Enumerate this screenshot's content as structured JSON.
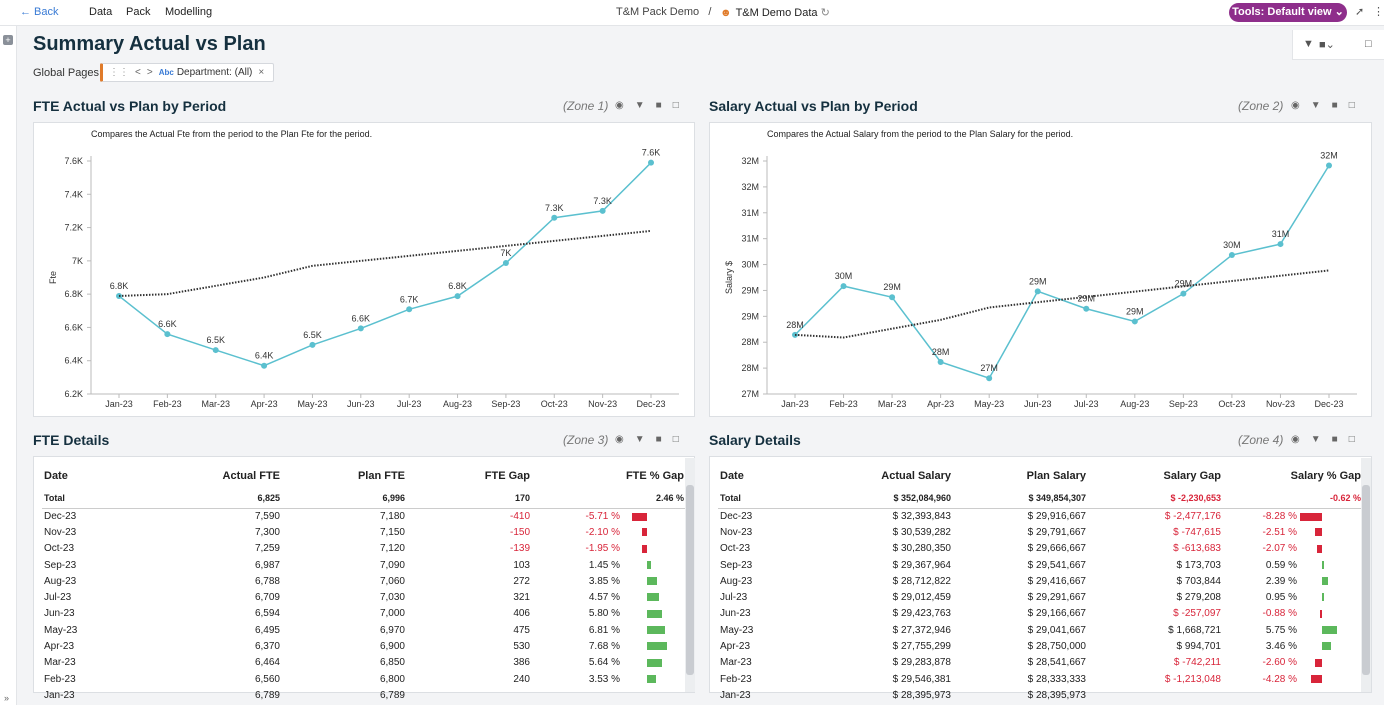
{
  "topbar": {
    "back": "← Back",
    "menus": [
      "Data",
      "Pack",
      "Modelling"
    ],
    "crumb_pack": "T&M Pack Demo",
    "separator": "/",
    "crumb_data": "T&M Demo Data",
    "tools": "Tools: Default view ⌄"
  },
  "page": {
    "title": "Summary Actual vs Plan",
    "global_pages": "Global Pages",
    "filter": "Department: (All)"
  },
  "zones": {
    "z1": {
      "title": "FTE Actual vs Plan by Period",
      "zone": "(Zone 1)",
      "desc": "Compares the Actual Fte from the period to the Plan Fte for the period."
    },
    "z2": {
      "title": "Salary Actual vs Plan by Period",
      "zone": "(Zone 2)",
      "desc": "Compares the Actual Salary from the period to the Plan Salary for the period."
    },
    "z3": {
      "title": "FTE Details",
      "zone": "(Zone 3)"
    },
    "z4": {
      "title": "Salary Details",
      "zone": "(Zone 4)"
    }
  },
  "chart_data": [
    {
      "type": "line",
      "ylabel": "Fte",
      "categories": [
        "Jan-23",
        "Feb-23",
        "Mar-23",
        "Apr-23",
        "May-23",
        "Jun-23",
        "Jul-23",
        "Aug-23",
        "Sep-23",
        "Oct-23",
        "Nov-23",
        "Dec-23"
      ],
      "yticks": [
        "6.2K",
        "6.4K",
        "6.6K",
        "6.8K",
        "7K",
        "7.2K",
        "7.4K",
        "7.6K"
      ],
      "ylim": [
        6200,
        7600
      ],
      "series": [
        {
          "values": [
            6789,
            6560,
            6464,
            6370,
            6495,
            6594,
            6709,
            6788,
            6987,
            7259,
            7300,
            7590
          ],
          "labels": [
            "6.8K",
            "6.6K",
            "6.5K",
            "6.4K",
            "6.5K",
            "6.6K",
            "6.7K",
            "6.8K",
            "7K",
            "7.3K",
            "7.3K",
            "7.6K"
          ],
          "color": "#5bc0cf"
        },
        {
          "values": [
            6789,
            6800,
            6850,
            6900,
            6970,
            7000,
            7030,
            7060,
            7090,
            7120,
            7150,
            7180
          ],
          "color": "#333333",
          "dotted": true
        }
      ]
    },
    {
      "type": "line",
      "ylabel": "Salary $",
      "categories": [
        "Jan-23",
        "Feb-23",
        "Mar-23",
        "Apr-23",
        "May-23",
        "Jun-23",
        "Jul-23",
        "Aug-23",
        "Sep-23",
        "Oct-23",
        "Nov-23",
        "Dec-23"
      ],
      "yticks": [
        "27M",
        "28M",
        "28M",
        "29M",
        "29M",
        "30M",
        "31M",
        "31M",
        "32M",
        "32M"
      ],
      "ylim": [
        27000000,
        32500000
      ],
      "series": [
        {
          "values": [
            28395973,
            29546381,
            29283878,
            27755299,
            27372946,
            29423763,
            29012459,
            28712822,
            29367964,
            30280350,
            30539282,
            32393843
          ],
          "labels": [
            "28M",
            "30M",
            "29M",
            "28M",
            "27M",
            "29M",
            "29M",
            "29M",
            "29M",
            "30M",
            "31M",
            "32M"
          ],
          "color": "#5bc0cf"
        },
        {
          "values": [
            28395973,
            28333333,
            28541667,
            28750000,
            29041667,
            29166667,
            29291667,
            29416667,
            29541667,
            29666667,
            29791667,
            29916667
          ],
          "color": "#333333",
          "dotted": true
        }
      ]
    }
  ],
  "fte_table": {
    "headers": [
      "Date",
      "Actual FTE",
      "Plan FTE",
      "FTE Gap",
      "FTE % Gap"
    ],
    "total": [
      "Total",
      "6,825",
      "6,996",
      "170",
      "2.46 %"
    ],
    "rows": [
      {
        "date": "Dec-23",
        "actual": "7,590",
        "plan": "7,180",
        "gap": "-410",
        "pct": "-5.71 %",
        "v": -5.71
      },
      {
        "date": "Nov-23",
        "actual": "7,300",
        "plan": "7,150",
        "gap": "-150",
        "pct": "-2.10 %",
        "v": -2.1
      },
      {
        "date": "Oct-23",
        "actual": "7,259",
        "plan": "7,120",
        "gap": "-139",
        "pct": "-1.95 %",
        "v": -1.95
      },
      {
        "date": "Sep-23",
        "actual": "6,987",
        "plan": "7,090",
        "gap": "103",
        "pct": "1.45 %",
        "v": 1.45
      },
      {
        "date": "Aug-23",
        "actual": "6,788",
        "plan": "7,060",
        "gap": "272",
        "pct": "3.85 %",
        "v": 3.85
      },
      {
        "date": "Jul-23",
        "actual": "6,709",
        "plan": "7,030",
        "gap": "321",
        "pct": "4.57 %",
        "v": 4.57
      },
      {
        "date": "Jun-23",
        "actual": "6,594",
        "plan": "7,000",
        "gap": "406",
        "pct": "5.80 %",
        "v": 5.8
      },
      {
        "date": "May-23",
        "actual": "6,495",
        "plan": "6,970",
        "gap": "475",
        "pct": "6.81 %",
        "v": 6.81
      },
      {
        "date": "Apr-23",
        "actual": "6,370",
        "plan": "6,900",
        "gap": "530",
        "pct": "7.68 %",
        "v": 7.68
      },
      {
        "date": "Mar-23",
        "actual": "6,464",
        "plan": "6,850",
        "gap": "386",
        "pct": "5.64 %",
        "v": 5.64
      },
      {
        "date": "Feb-23",
        "actual": "6,560",
        "plan": "6,800",
        "gap": "240",
        "pct": "3.53 %",
        "v": 3.53
      },
      {
        "date": "Jan-23",
        "actual": "6,789",
        "plan": "6,789",
        "gap": "",
        "pct": "",
        "v": 0
      }
    ]
  },
  "salary_table": {
    "headers": [
      "Date",
      "Actual Salary",
      "Plan Salary",
      "Salary Gap",
      "Salary % Gap"
    ],
    "total": [
      "Total",
      "$ 352,084,960",
      "$ 349,854,307",
      "$ -2,230,653",
      "-0.62 %"
    ],
    "rows": [
      {
        "date": "Dec-23",
        "actual": "$ 32,393,843",
        "plan": "$ 29,916,667",
        "gap": "$ -2,477,176",
        "pct": "-8.28 %",
        "v": -8.28
      },
      {
        "date": "Nov-23",
        "actual": "$ 30,539,282",
        "plan": "$ 29,791,667",
        "gap": "$ -747,615",
        "pct": "-2.51 %",
        "v": -2.51
      },
      {
        "date": "Oct-23",
        "actual": "$ 30,280,350",
        "plan": "$ 29,666,667",
        "gap": "$ -613,683",
        "pct": "-2.07 %",
        "v": -2.07
      },
      {
        "date": "Sep-23",
        "actual": "$ 29,367,964",
        "plan": "$ 29,541,667",
        "gap": "$ 173,703",
        "pct": "0.59 %",
        "v": 0.59
      },
      {
        "date": "Aug-23",
        "actual": "$ 28,712,822",
        "plan": "$ 29,416,667",
        "gap": "$ 703,844",
        "pct": "2.39 %",
        "v": 2.39
      },
      {
        "date": "Jul-23",
        "actual": "$ 29,012,459",
        "plan": "$ 29,291,667",
        "gap": "$ 279,208",
        "pct": "0.95 %",
        "v": 0.95
      },
      {
        "date": "Jun-23",
        "actual": "$ 29,423,763",
        "plan": "$ 29,166,667",
        "gap": "$ -257,097",
        "pct": "-0.88 %",
        "v": -0.88
      },
      {
        "date": "May-23",
        "actual": "$ 27,372,946",
        "plan": "$ 29,041,667",
        "gap": "$ 1,668,721",
        "pct": "5.75 %",
        "v": 5.75
      },
      {
        "date": "Apr-23",
        "actual": "$ 27,755,299",
        "plan": "$ 28,750,000",
        "gap": "$ 994,701",
        "pct": "3.46 %",
        "v": 3.46
      },
      {
        "date": "Mar-23",
        "actual": "$ 29,283,878",
        "plan": "$ 28,541,667",
        "gap": "$ -742,211",
        "pct": "-2.60 %",
        "v": -2.6
      },
      {
        "date": "Feb-23",
        "actual": "$ 29,546,381",
        "plan": "$ 28,333,333",
        "gap": "$ -1,213,048",
        "pct": "-4.28 %",
        "v": -4.28
      },
      {
        "date": "Jan-23",
        "actual": "$ 28,395,973",
        "plan": "$ 28,395,973",
        "gap": "",
        "pct": "",
        "v": 0
      }
    ]
  },
  "colors": {
    "positive": "#5cb85c",
    "negative": "#d8253a",
    "line": "#5bc0cf",
    "accent": "#8e2e8b"
  }
}
